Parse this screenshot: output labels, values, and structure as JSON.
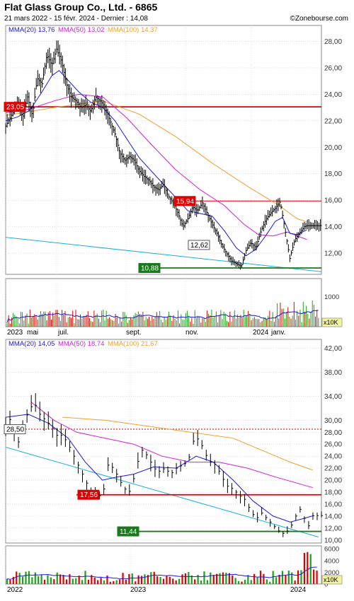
{
  "header": {
    "title": "Flat Glass Group Co., Ltd. - 6865",
    "subtitle": "21 mars 2022 - 15 févr. 2024 - Dernier : 14,08",
    "brand": "©Zonebourse.com"
  },
  "colors": {
    "price": "#000000",
    "mma20": "#1a1adc",
    "mma50": "#d61ed6",
    "mma100": "#f0a030",
    "resistance": "#e00000",
    "support": "#1a7a1a",
    "trend": "#19b0d8",
    "volume_up": "#19a319",
    "volume_down": "#e00000",
    "volume_avg": "#1a1adc",
    "grid": "#cccccc"
  },
  "chart_data": [
    {
      "type": "line",
      "title": "Daily price",
      "ylim": [
        10.4,
        29.2
      ],
      "y_ticks": [
        "28,00",
        "26,00",
        "24,00",
        "22,00",
        "20,00",
        "18,00",
        "16,00",
        "14,00",
        "12,00"
      ],
      "x_tick_labels": [
        "2023",
        "mai",
        "juil.",
        "sept.",
        "nov.",
        "2024",
        "janv."
      ],
      "legend": [
        {
          "name": "MMA(20)",
          "value": "13,76",
          "color": "#1a1adc"
        },
        {
          "name": "MMA(50)",
          "value": "13,02",
          "color": "#d61ed6"
        },
        {
          "name": "MMA(100)",
          "value": "14,37",
          "color": "#f0a030"
        }
      ],
      "price_series": [
        [
          0,
          21.6
        ],
        [
          6,
          22.6
        ],
        [
          10,
          23.5
        ],
        [
          14,
          22.2
        ],
        [
          18,
          23.8
        ],
        [
          22,
          22.4
        ],
        [
          26,
          25.2
        ],
        [
          30,
          24.8
        ],
        [
          34,
          27.0
        ],
        [
          38,
          26.2
        ],
        [
          42,
          27.4
        ],
        [
          46,
          26.5
        ],
        [
          50,
          24.8
        ],
        [
          54,
          23.8
        ],
        [
          58,
          23.5
        ],
        [
          62,
          23.0
        ],
        [
          66,
          23.2
        ],
        [
          70,
          22.7
        ],
        [
          74,
          23.8
        ],
        [
          78,
          23.5
        ],
        [
          82,
          23.0
        ],
        [
          86,
          22.0
        ],
        [
          90,
          21.0
        ],
        [
          94,
          19.6
        ],
        [
          98,
          19.0
        ],
        [
          102,
          19.3
        ],
        [
          106,
          19.0
        ],
        [
          110,
          18.2
        ],
        [
          114,
          17.8
        ],
        [
          118,
          17.5
        ],
        [
          122,
          17.0
        ],
        [
          126,
          16.8
        ],
        [
          130,
          17.2
        ],
        [
          134,
          16.3
        ],
        [
          138,
          15.8
        ],
        [
          142,
          15.0
        ],
        [
          146,
          14.0
        ],
        [
          150,
          14.6
        ],
        [
          154,
          15.5
        ],
        [
          158,
          15.2
        ],
        [
          162,
          15.8
        ],
        [
          166,
          15.0
        ],
        [
          170,
          14.2
        ],
        [
          174,
          13.5
        ],
        [
          178,
          12.6
        ],
        [
          182,
          12.0
        ],
        [
          186,
          11.4
        ],
        [
          190,
          11.2
        ],
        [
          194,
          11.0
        ],
        [
          198,
          12.2
        ],
        [
          202,
          12.8
        ],
        [
          206,
          12.4
        ],
        [
          210,
          13.6
        ],
        [
          214,
          14.5
        ],
        [
          218,
          15.0
        ],
        [
          222,
          15.4
        ],
        [
          226,
          15.9
        ],
        [
          230,
          13.8
        ],
        [
          234,
          11.6
        ],
        [
          238,
          13.0
        ],
        [
          242,
          13.5
        ],
        [
          246,
          14.0
        ],
        [
          248,
          14.08
        ]
      ],
      "mma20_series": [
        [
          0,
          22.0
        ],
        [
          10,
          22.3
        ],
        [
          20,
          22.8
        ],
        [
          30,
          24.2
        ],
        [
          38,
          25.4
        ],
        [
          44,
          25.8
        ],
        [
          52,
          25.0
        ],
        [
          60,
          24.2
        ],
        [
          70,
          23.4
        ],
        [
          80,
          23.0
        ],
        [
          90,
          22.0
        ],
        [
          100,
          20.6
        ],
        [
          110,
          19.2
        ],
        [
          120,
          18.2
        ],
        [
          130,
          17.2
        ],
        [
          140,
          16.2
        ],
        [
          150,
          15.2
        ],
        [
          160,
          15.0
        ],
        [
          170,
          14.8
        ],
        [
          180,
          13.7
        ],
        [
          190,
          12.4
        ],
        [
          198,
          11.8
        ],
        [
          206,
          12.3
        ],
        [
          214,
          13.3
        ],
        [
          222,
          14.4
        ],
        [
          228,
          14.7
        ],
        [
          234,
          13.5
        ],
        [
          240,
          13.4
        ],
        [
          248,
          13.76
        ]
      ],
      "mma50_series": [
        [
          0,
          22.6
        ],
        [
          20,
          22.9
        ],
        [
          40,
          23.5
        ],
        [
          60,
          24.0
        ],
        [
          80,
          23.8
        ],
        [
          100,
          22.2
        ],
        [
          120,
          20.2
        ],
        [
          140,
          18.3
        ],
        [
          160,
          16.8
        ],
        [
          180,
          15.6
        ],
        [
          196,
          14.2
        ],
        [
          208,
          13.4
        ],
        [
          220,
          13.3
        ],
        [
          232,
          13.6
        ],
        [
          248,
          13.02
        ]
      ],
      "mma100_series": [
        [
          0,
          22.4
        ],
        [
          40,
          23.0
        ],
        [
          80,
          23.5
        ],
        [
          110,
          22.5
        ],
        [
          140,
          20.8
        ],
        [
          170,
          18.8
        ],
        [
          200,
          17.0
        ],
        [
          225,
          15.6
        ],
        [
          240,
          14.6
        ],
        [
          248,
          14.37
        ]
      ],
      "resistance": {
        "label": "23,05",
        "value": 23.05
      },
      "resistance2": {
        "label": "15,94",
        "value": 15.94
      },
      "support": {
        "label": "10,88",
        "value": 10.88
      },
      "last_tag": {
        "label": "12,62",
        "value": 12.62
      },
      "trendline": [
        [
          0,
          13.2
        ],
        [
          260,
          10.6
        ]
      ]
    },
    {
      "type": "bar",
      "title": "Daily volume",
      "y_ticks": [
        "1000"
      ],
      "unit": "x10K"
    },
    {
      "type": "line",
      "title": "Weekly price",
      "ylim": [
        9.5,
        43.5
      ],
      "y_ticks": [
        "42,00",
        "38,00",
        "34,00",
        "30,00",
        "28,00",
        "26,00",
        "24,00",
        "22,00",
        "20,00",
        "18,00",
        "16,00",
        "14,00",
        "12,00",
        "10,00"
      ],
      "x_tick_labels": [
        "2022",
        "2023",
        "2024"
      ],
      "legend": [
        {
          "name": "MMA(20)",
          "value": "14,05",
          "color": "#1a1adc"
        },
        {
          "name": "MMA(50)",
          "value": "18,74",
          "color": "#d61ed6"
        },
        {
          "name": "MMA(100)",
          "value": "21,67",
          "color": "#f0a030"
        }
      ],
      "price_series": [
        [
          0,
          29.0
        ],
        [
          4,
          30.5
        ],
        [
          8,
          25.5
        ],
        [
          12,
          29.0
        ],
        [
          16,
          31.5
        ],
        [
          20,
          33.0
        ],
        [
          24,
          31.0
        ],
        [
          28,
          30.0
        ],
        [
          32,
          29.0
        ],
        [
          36,
          27.5
        ],
        [
          40,
          27.5
        ],
        [
          44,
          26.0
        ],
        [
          48,
          24.0
        ],
        [
          52,
          22.0
        ],
        [
          56,
          20.0
        ],
        [
          60,
          18.0
        ],
        [
          64,
          17.6
        ],
        [
          68,
          17.2
        ],
        [
          72,
          22.5
        ],
        [
          76,
          22.0
        ],
        [
          80,
          20.0
        ],
        [
          84,
          18.5
        ],
        [
          88,
          18.0
        ],
        [
          92,
          22.5
        ],
        [
          96,
          25.0
        ],
        [
          100,
          24.0
        ],
        [
          104,
          22.0
        ],
        [
          108,
          21.5
        ],
        [
          112,
          22.0
        ],
        [
          116,
          21.0
        ],
        [
          120,
          22.0
        ],
        [
          124,
          22.5
        ],
        [
          128,
          23.0
        ],
        [
          132,
          26.5
        ],
        [
          136,
          27.0
        ],
        [
          140,
          24.5
        ],
        [
          144,
          23.0
        ],
        [
          148,
          22.5
        ],
        [
          152,
          20.5
        ],
        [
          156,
          19.0
        ],
        [
          160,
          18.5
        ],
        [
          164,
          17.5
        ],
        [
          168,
          16.8
        ],
        [
          172,
          15.0
        ],
        [
          176,
          13.5
        ],
        [
          180,
          14.5
        ],
        [
          184,
          13.5
        ],
        [
          188,
          12.5
        ],
        [
          192,
          11.5
        ],
        [
          196,
          11.0
        ],
        [
          200,
          12.0
        ],
        [
          204,
          14.0
        ],
        [
          208,
          15.5
        ],
        [
          212,
          11.8
        ],
        [
          216,
          14.08
        ]
      ],
      "mma20_series": [
        [
          0,
          30.5
        ],
        [
          16,
          31.0
        ],
        [
          30,
          29.5
        ],
        [
          44,
          27.0
        ],
        [
          56,
          23.0
        ],
        [
          68,
          20.0
        ],
        [
          78,
          20.5
        ],
        [
          90,
          21.0
        ],
        [
          104,
          22.2
        ],
        [
          120,
          22.0
        ],
        [
          134,
          24.0
        ],
        [
          146,
          23.0
        ],
        [
          160,
          20.0
        ],
        [
          174,
          16.5
        ],
        [
          188,
          14.0
        ],
        [
          200,
          13.0
        ],
        [
          208,
          13.5
        ],
        [
          216,
          14.05
        ]
      ],
      "mma50_series": [
        [
          18,
          33.0
        ],
        [
          34,
          30.0
        ],
        [
          50,
          28.0
        ],
        [
          70,
          27.0
        ],
        [
          90,
          26.0
        ],
        [
          110,
          24.0
        ],
        [
          130,
          23.0
        ],
        [
          150,
          23.0
        ],
        [
          170,
          22.0
        ],
        [
          190,
          20.5
        ],
        [
          205,
          19.5
        ],
        [
          216,
          18.74
        ]
      ],
      "mma100_series": [
        [
          40,
          30.5
        ],
        [
          70,
          30.0
        ],
        [
          100,
          29.0
        ],
        [
          130,
          28.0
        ],
        [
          160,
          27.0
        ],
        [
          180,
          25.0
        ],
        [
          200,
          23.0
        ],
        [
          216,
          21.67
        ]
      ],
      "resistance": {
        "label": "28,50",
        "value": 28.5
      },
      "resistance2": {
        "label": "17,56",
        "value": 17.56
      },
      "support": {
        "label": "11,44",
        "value": 11.44
      },
      "trendline": [
        [
          0,
          25.5
        ],
        [
          220,
          10.5
        ]
      ]
    },
    {
      "type": "bar",
      "title": "Weekly volume",
      "y_ticks": [
        "6000",
        "4000",
        "2000",
        "0"
      ],
      "unit": "x10K"
    }
  ]
}
